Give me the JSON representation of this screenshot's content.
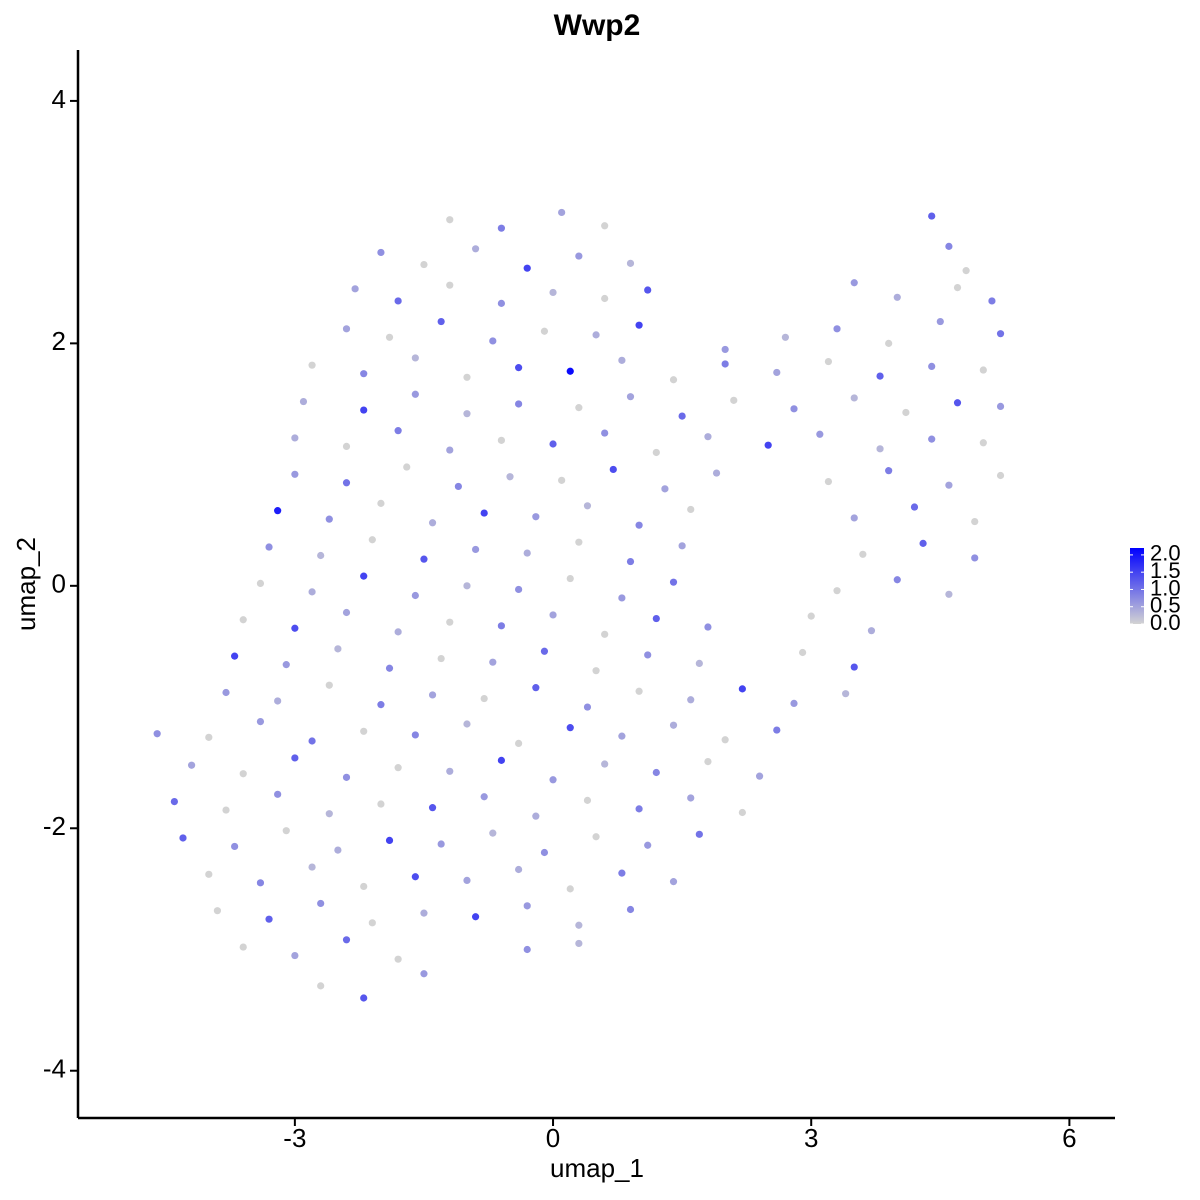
{
  "chart_data": {
    "type": "scatter",
    "title": "Wwp2",
    "xlabel": "umap_1",
    "ylabel": "umap_2",
    "xlim": [
      -5.52,
      6.53
    ],
    "ylim": [
      -4.39,
      4.42
    ],
    "xticks": [
      -3,
      0,
      3,
      6
    ],
    "yticks": [
      -4,
      -2,
      0,
      2,
      4
    ],
    "color_low": "#d3d3d3",
    "color_high": "#0000ff",
    "clim": [
      0,
      2.2
    ],
    "colorbar_ticks": [
      {
        "value": 0,
        "label": "0.0"
      },
      {
        "value": 0.5,
        "label": "0.5"
      },
      {
        "value": 1,
        "label": "1.0"
      },
      {
        "value": 1.5,
        "label": "1.5"
      },
      {
        "value": 2,
        "label": "2.0"
      }
    ],
    "x": [
      -1.2,
      -0.6,
      0.1,
      0.6,
      4.4,
      -2.0,
      -1.5,
      -0.9,
      -0.3,
      0.3,
      0.9,
      4.6,
      4.8,
      -2.3,
      -1.8,
      -1.2,
      -0.6,
      0.0,
      0.6,
      1.1,
      3.5,
      4.0,
      4.7,
      5.1,
      -2.4,
      -1.9,
      -1.3,
      -0.7,
      -0.1,
      0.5,
      1.0,
      2.0,
      2.7,
      3.3,
      3.9,
      4.5,
      5.2,
      -2.8,
      -2.2,
      -1.6,
      -1.0,
      -0.4,
      0.2,
      0.8,
      1.4,
      2.0,
      2.6,
      3.2,
      3.8,
      4.4,
      5.0,
      -2.9,
      -2.2,
      -1.6,
      -1.0,
      -0.4,
      0.3,
      0.9,
      1.5,
      2.1,
      2.8,
      3.5,
      4.1,
      4.7,
      5.2,
      -3.0,
      -2.4,
      -1.8,
      -1.2,
      -0.6,
      0.0,
      0.6,
      1.2,
      1.8,
      2.5,
      3.1,
      3.8,
      4.4,
      5.0,
      -3.0,
      -2.4,
      -1.7,
      -1.1,
      -0.5,
      0.1,
      0.7,
      1.3,
      1.9,
      3.2,
      3.9,
      4.6,
      5.2,
      -3.2,
      -2.6,
      -2.0,
      -1.4,
      -0.8,
      -0.2,
      0.4,
      1.0,
      1.6,
      3.5,
      4.2,
      4.9,
      -3.3,
      -2.7,
      -2.1,
      -1.5,
      -0.9,
      -0.3,
      0.3,
      0.9,
      1.5,
      3.6,
      4.3,
      4.9,
      -3.4,
      -2.8,
      -2.2,
      -1.6,
      -1.0,
      -0.4,
      0.2,
      0.8,
      1.4,
      3.3,
      4.0,
      4.6,
      -3.6,
      -3.0,
      -2.4,
      -1.8,
      -1.2,
      -0.6,
      0.0,
      0.6,
      1.2,
      1.8,
      3.0,
      3.7,
      -3.7,
      -3.1,
      -2.5,
      -1.9,
      -1.3,
      -0.7,
      -0.1,
      0.5,
      1.1,
      1.7,
      2.9,
      3.5,
      -3.8,
      -3.2,
      -2.6,
      -2.0,
      -1.4,
      -0.8,
      -0.2,
      0.4,
      1.0,
      1.6,
      2.2,
      2.8,
      3.4,
      -4.6,
      -4.0,
      -3.4,
      -2.8,
      -2.2,
      -1.6,
      -1.0,
      -0.4,
      0.2,
      0.8,
      1.4,
      2.0,
      2.6,
      -4.2,
      -3.6,
      -3.0,
      -2.4,
      -1.8,
      -1.2,
      -0.6,
      0.0,
      0.6,
      1.2,
      1.8,
      2.4,
      -4.4,
      -3.8,
      -3.2,
      -2.6,
      -2.0,
      -1.4,
      -0.8,
      -0.2,
      0.4,
      1.0,
      1.6,
      2.2,
      -4.3,
      -3.7,
      -3.1,
      -2.5,
      -1.9,
      -1.3,
      -0.7,
      -0.1,
      0.5,
      1.1,
      1.7,
      -4.0,
      -3.4,
      -2.8,
      -2.2,
      -1.6,
      -1.0,
      -0.4,
      0.2,
      0.8,
      1.4,
      -3.9,
      -3.3,
      -2.7,
      -2.1,
      -1.5,
      -0.9,
      -0.3,
      0.3,
      0.9,
      -3.6,
      -3.0,
      -2.4,
      -1.8,
      -0.3,
      0.3,
      -2.7,
      -2.2,
      -1.5
    ],
    "y": [
      3.02,
      2.95,
      3.08,
      2.97,
      3.05,
      2.75,
      2.65,
      2.78,
      2.62,
      2.72,
      2.66,
      2.8,
      2.6,
      2.45,
      2.35,
      2.48,
      2.33,
      2.42,
      2.37,
      2.44,
      2.5,
      2.38,
      2.46,
      2.35,
      2.12,
      2.05,
      2.18,
      2.02,
      2.1,
      2.07,
      2.15,
      1.95,
      2.05,
      2.12,
      2.0,
      2.18,
      2.08,
      1.82,
      1.75,
      1.88,
      1.72,
      1.8,
      1.77,
      1.86,
      1.7,
      1.83,
      1.76,
      1.85,
      1.73,
      1.81,
      1.78,
      1.52,
      1.45,
      1.58,
      1.42,
      1.5,
      1.47,
      1.56,
      1.4,
      1.53,
      1.46,
      1.55,
      1.43,
      1.51,
      1.48,
      1.22,
      1.15,
      1.28,
      1.12,
      1.2,
      1.17,
      1.26,
      1.1,
      1.23,
      1.16,
      1.25,
      1.13,
      1.21,
      1.18,
      0.92,
      0.85,
      0.98,
      0.82,
      0.9,
      0.87,
      0.96,
      0.8,
      0.93,
      0.86,
      0.95,
      0.83,
      0.91,
      0.62,
      0.55,
      0.68,
      0.52,
      0.6,
      0.57,
      0.66,
      0.5,
      0.63,
      0.56,
      0.65,
      0.53,
      0.32,
      0.25,
      0.38,
      0.22,
      0.3,
      0.27,
      0.36,
      0.2,
      0.33,
      0.26,
      0.35,
      0.23,
      0.02,
      -0.05,
      0.08,
      -0.08,
      0.0,
      -0.03,
      0.06,
      -0.1,
      0.03,
      -0.04,
      0.05,
      -0.07,
      -0.28,
      -0.35,
      -0.22,
      -0.38,
      -0.3,
      -0.33,
      -0.24,
      -0.4,
      -0.27,
      -0.34,
      -0.25,
      -0.37,
      -0.58,
      -0.65,
      -0.52,
      -0.68,
      -0.6,
      -0.63,
      -0.54,
      -0.7,
      -0.57,
      -0.64,
      -0.55,
      -0.67,
      -0.88,
      -0.95,
      -0.82,
      -0.98,
      -0.9,
      -0.93,
      -0.84,
      -1.0,
      -0.87,
      -0.94,
      -0.85,
      -0.97,
      -0.89,
      -1.22,
      -1.25,
      -1.12,
      -1.28,
      -1.2,
      -1.23,
      -1.14,
      -1.3,
      -1.17,
      -1.24,
      -1.15,
      -1.27,
      -1.19,
      -1.48,
      -1.55,
      -1.42,
      -1.58,
      -1.5,
      -1.53,
      -1.44,
      -1.6,
      -1.47,
      -1.54,
      -1.45,
      -1.57,
      -1.78,
      -1.85,
      -1.72,
      -1.88,
      -1.8,
      -1.83,
      -1.74,
      -1.9,
      -1.77,
      -1.84,
      -1.75,
      -1.87,
      -2.08,
      -2.15,
      -2.02,
      -2.18,
      -2.1,
      -2.13,
      -2.04,
      -2.2,
      -2.07,
      -2.14,
      -2.05,
      -2.38,
      -2.45,
      -2.32,
      -2.48,
      -2.4,
      -2.43,
      -2.34,
      -2.5,
      -2.37,
      -2.44,
      -2.68,
      -2.75,
      -2.62,
      -2.78,
      -2.7,
      -2.73,
      -2.64,
      -2.8,
      -2.67,
      -2.98,
      -3.05,
      -2.92,
      -3.08,
      -3.0,
      -2.95,
      -3.3,
      -3.4,
      -3.2
    ],
    "values": [
      0,
      0.9,
      0.5,
      0,
      1.2,
      0.7,
      0,
      0.4,
      1.5,
      0.6,
      0.3,
      0.8,
      0,
      0.5,
      1.1,
      0,
      0.7,
      0.3,
      0,
      1.3,
      0.6,
      0.4,
      0,
      0.9,
      0.5,
      0,
      1.2,
      0.7,
      0,
      0.4,
      1.5,
      0.6,
      0.3,
      0.7,
      0,
      0.6,
      1.0,
      0,
      0.8,
      0.3,
      0,
      1.4,
      2.1,
      0.4,
      0,
      0.9,
      0.5,
      0,
      1.2,
      0.7,
      0,
      0.4,
      1.5,
      0.6,
      0.3,
      0.8,
      0,
      0.5,
      1.1,
      0,
      0.7,
      0.3,
      0,
      1.3,
      0.6,
      0.4,
      0,
      0.9,
      0.5,
      0,
      1.2,
      0.7,
      0,
      0.4,
      1.5,
      0.6,
      0.3,
      0.7,
      0,
      0.6,
      1.0,
      0,
      0.8,
      0.3,
      0,
      1.4,
      0.5,
      0.4,
      0,
      0.9,
      0.5,
      0,
      1.9,
      0.7,
      0,
      0.4,
      1.5,
      0.6,
      0.3,
      0.8,
      0,
      0.5,
      1.1,
      0,
      0.7,
      0.3,
      0,
      1.3,
      0.6,
      0.4,
      0,
      0.9,
      0.5,
      0,
      1.2,
      0.7,
      0,
      0.4,
      1.5,
      0.6,
      0.3,
      0.7,
      0,
      0.6,
      1.0,
      0,
      0.8,
      0.3,
      0,
      1.4,
      0.5,
      0.4,
      0,
      0.9,
      0.5,
      0,
      1.2,
      0.7,
      0,
      0.4,
      1.5,
      0.6,
      0.3,
      0.8,
      0,
      0.5,
      1.1,
      0,
      0.7,
      0.3,
      0,
      1.3,
      0.6,
      0.4,
      0,
      0.9,
      0.5,
      0,
      1.2,
      0.7,
      0,
      0.4,
      1.5,
      0.6,
      0.3,
      0.7,
      0,
      0.6,
      1.0,
      0,
      0.8,
      0.3,
      0,
      1.4,
      0.5,
      0.4,
      0,
      0.9,
      0.5,
      0,
      1.2,
      0.7,
      0,
      0.4,
      1.5,
      0.6,
      0.3,
      0.8,
      0,
      0.5,
      1.1,
      0,
      0.7,
      0.3,
      0,
      1.3,
      0.6,
      0.4,
      0,
      0.9,
      0.5,
      0,
      1.2,
      0.7,
      0,
      0.4,
      1.5,
      0.6,
      0.3,
      0.7,
      0,
      0.6,
      1.0,
      0,
      0.8,
      0.3,
      0,
      1.4,
      0.5,
      0.4,
      0,
      0.9,
      0.5,
      0,
      1.2,
      0.7,
      0,
      0.4,
      1.5,
      0.6,
      0.3,
      0.8,
      0,
      0.5,
      1.1,
      0,
      0.7,
      0.3,
      0,
      1.3,
      0.6
    ]
  }
}
